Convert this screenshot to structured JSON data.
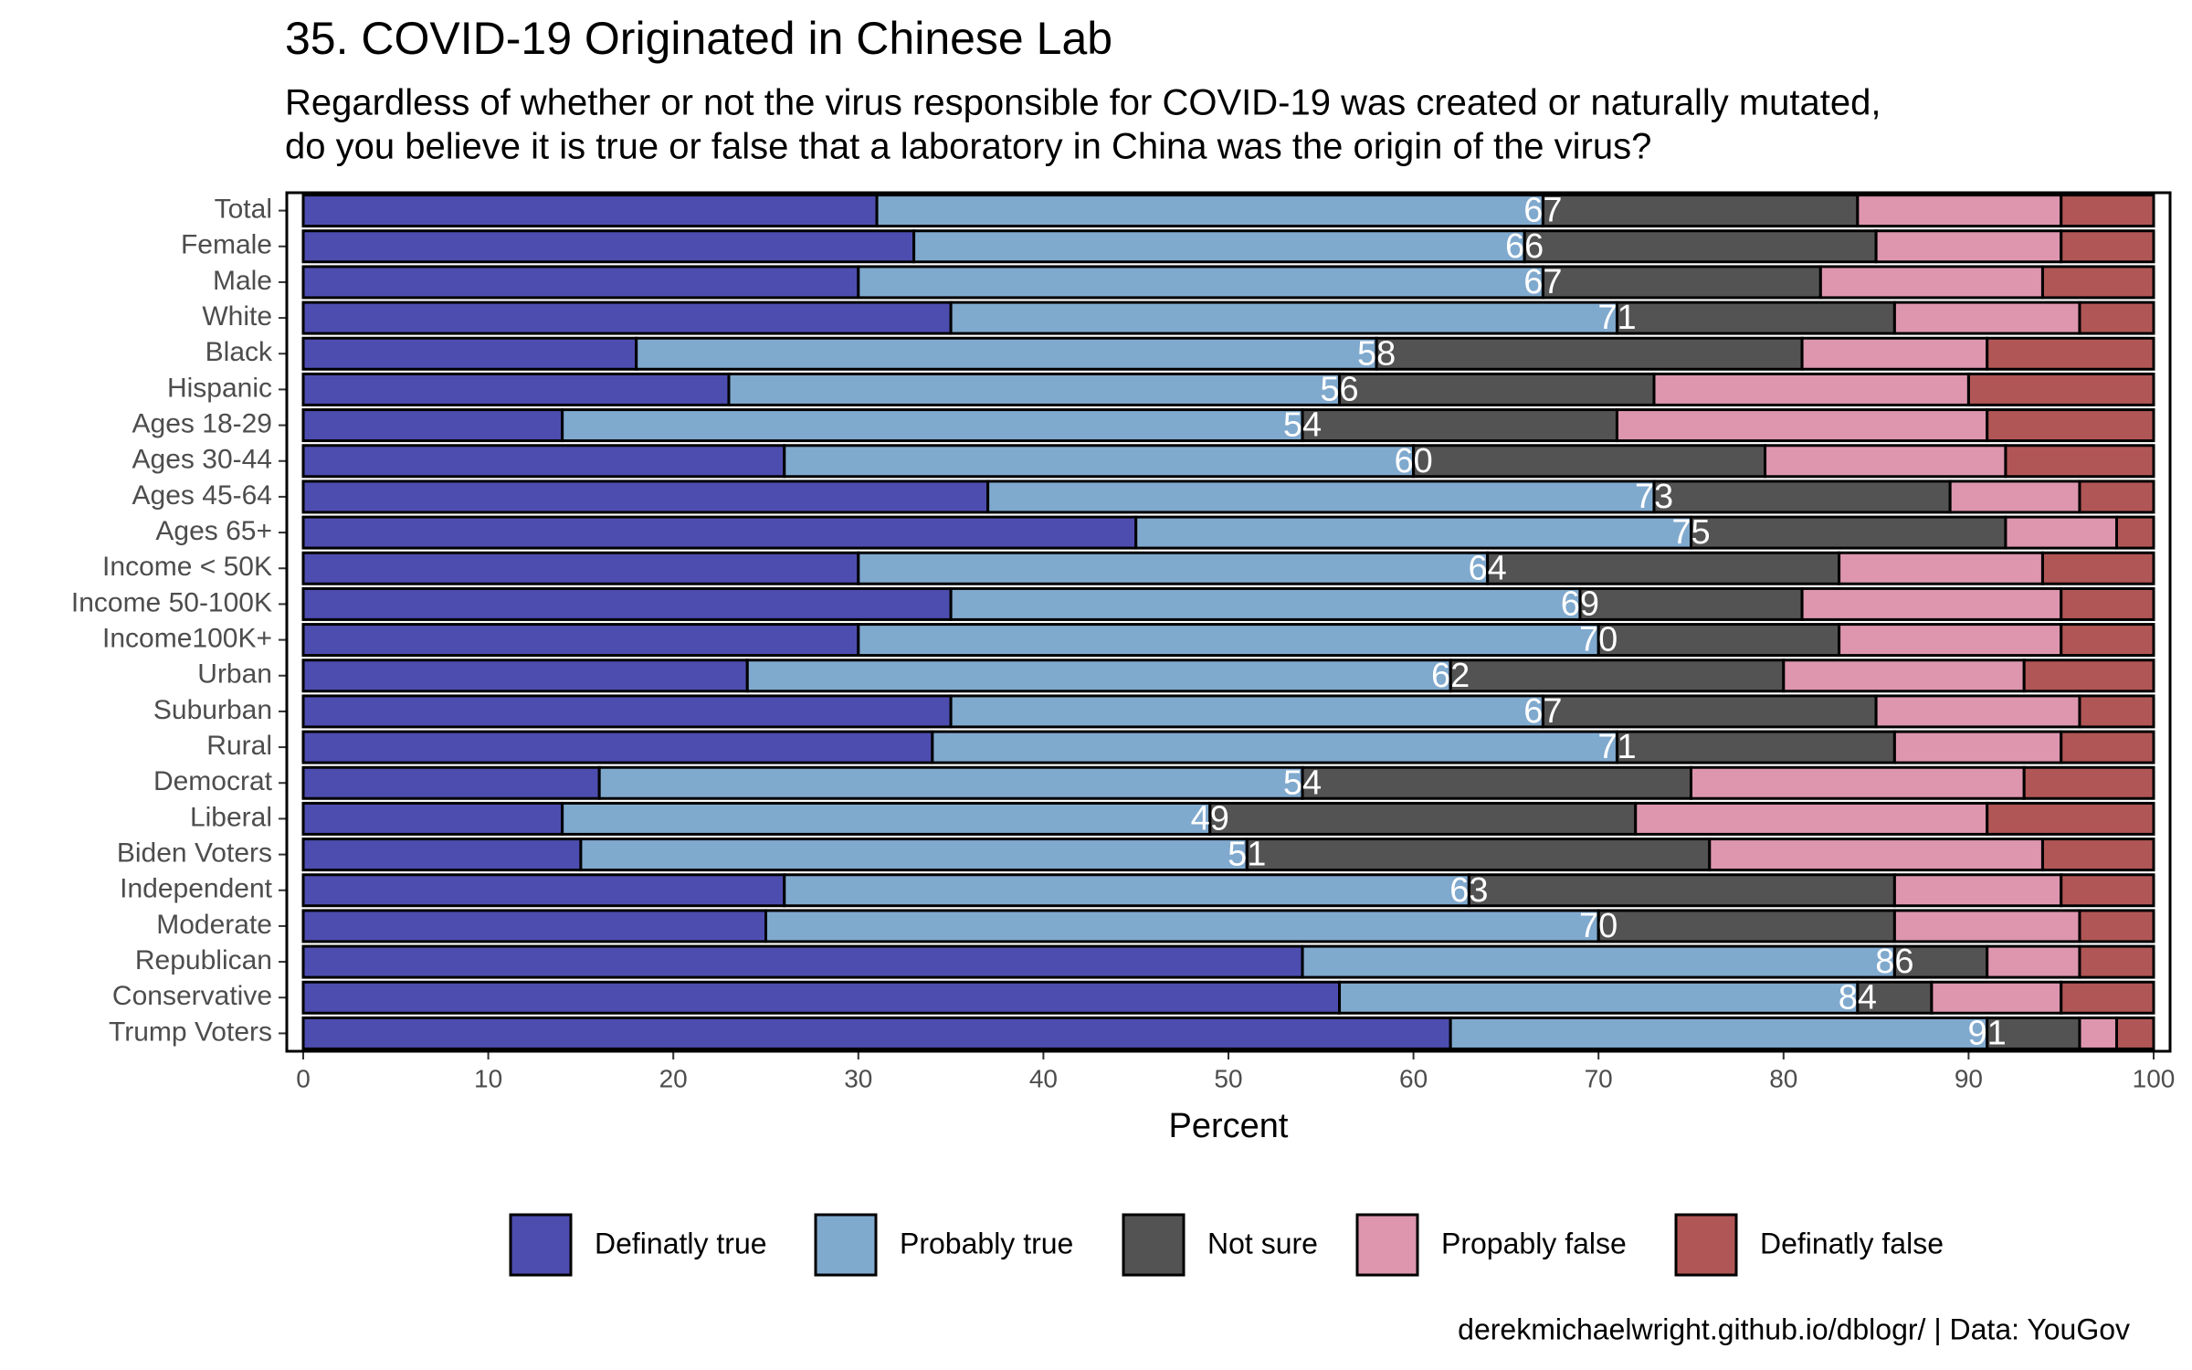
{
  "chart_data": {
    "type": "stacked_bar_horizontal",
    "title": "35. COVID-19 Originated in Chinese Lab",
    "subtitle": [
      "Regardless of whether or not the virus responsible for COVID-19 was created or naturally mutated,",
      "do you believe it is true or false that a laboratory in China was the origin of the virus?"
    ],
    "x_label": "Percent",
    "caption": "derekmichaelwright.github.io/dblogr/ | Data: YouGov",
    "categories": [
      "Total",
      "Female",
      "Male",
      "White",
      "Black",
      "Hispanic",
      "Ages 18-29",
      "Ages 30-44",
      "Ages 45-64",
      "Ages 65+",
      "Income < 50K",
      "Income 50-100K",
      "Income100K+",
      "Urban",
      "Suburban",
      "Rural",
      "Democrat",
      "Liberal",
      "Biden Voters",
      "Independent",
      "Moderate",
      "Republican",
      "Conservative",
      "Trump Voters"
    ],
    "series": [
      {
        "name": "Definatly true",
        "color": "#3a3aa6",
        "values": [
          31,
          33,
          30,
          35,
          18,
          23,
          14,
          26,
          37,
          45,
          30,
          35,
          30,
          24,
          35,
          34,
          16,
          14,
          15,
          26,
          25,
          54,
          56,
          62
        ]
      },
      {
        "name": "Probably true",
        "color": "#72a0c9",
        "values": [
          36,
          33,
          37,
          36,
          40,
          33,
          40,
          34,
          36,
          30,
          34,
          34,
          40,
          38,
          32,
          37,
          38,
          35,
          36,
          37,
          45,
          32,
          28,
          29
        ]
      },
      {
        "name": "Not sure",
        "color": "#404040",
        "values": [
          17,
          19,
          15,
          15,
          23,
          17,
          17,
          19,
          16,
          17,
          19,
          12,
          13,
          18,
          18,
          15,
          21,
          23,
          25,
          23,
          16,
          5,
          4,
          5
        ]
      },
      {
        "name": "Propably false",
        "color": "#d98ba5",
        "values": [
          11,
          10,
          12,
          10,
          10,
          17,
          20,
          13,
          7,
          6,
          11,
          14,
          12,
          13,
          11,
          9,
          18,
          19,
          18,
          9,
          10,
          5,
          7,
          2
        ]
      },
      {
        "name": "Definatly false",
        "color": "#a84444",
        "values": [
          5,
          5,
          6,
          4,
          9,
          10,
          9,
          8,
          4,
          2,
          6,
          5,
          5,
          7,
          4,
          5,
          7,
          9,
          6,
          5,
          4,
          4,
          5,
          2
        ]
      }
    ],
    "true_totals": [
      67,
      66,
      67,
      71,
      58,
      56,
      54,
      60,
      73,
      75,
      64,
      69,
      70,
      62,
      67,
      71,
      54,
      49,
      51,
      63,
      70,
      86,
      84,
      91
    ],
    "xlim": [
      0,
      100
    ],
    "xticks": [
      0,
      10,
      20,
      30,
      40,
      50,
      60,
      70,
      80,
      90,
      100
    ],
    "legend": "bottom"
  }
}
